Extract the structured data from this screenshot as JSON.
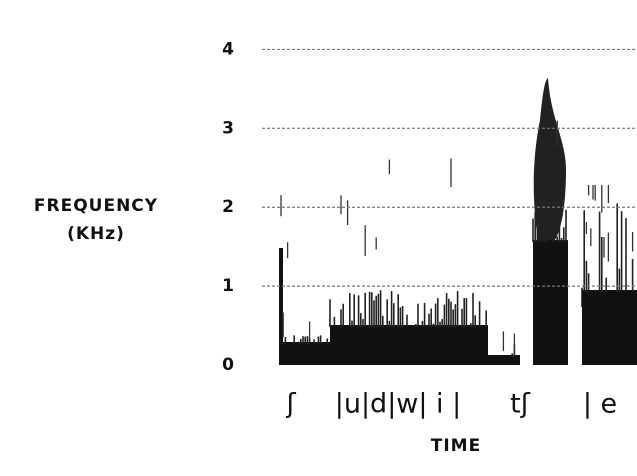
{
  "chart_data": {
    "type": "spectrogram",
    "y_label": [
      "FREQUENCY",
      "(KHz)"
    ],
    "x_label": "TIME",
    "categories": [
      "ʃ",
      "|u|d|w| i |",
      "tʃ",
      "| e"
    ],
    "ylim": [
      0,
      4.5
    ],
    "yticks": [
      0,
      1,
      2,
      3,
      4
    ],
    "grid": true
  }
}
